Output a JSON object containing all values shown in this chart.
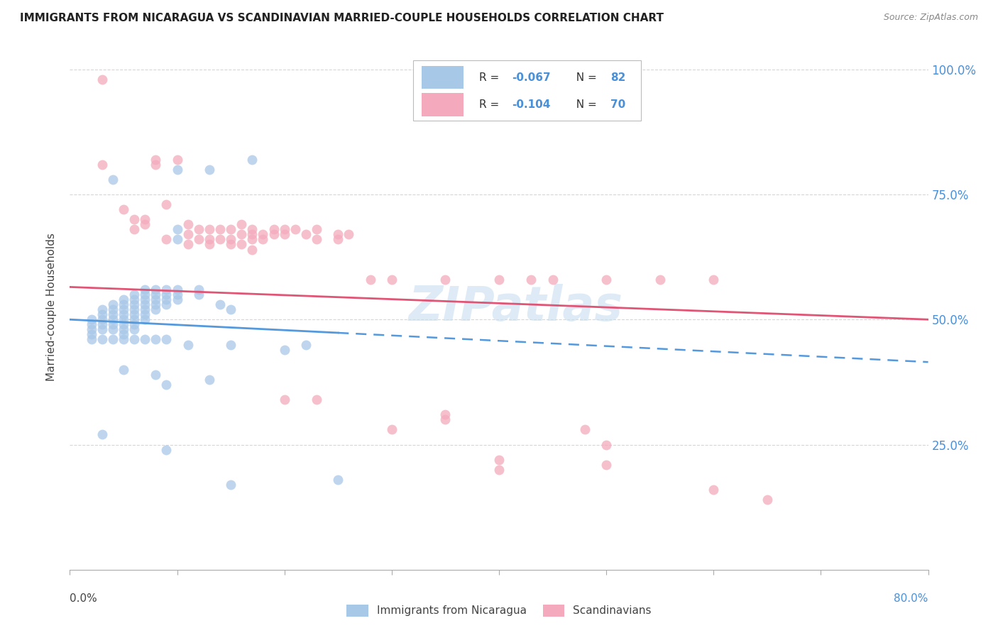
{
  "title": "IMMIGRANTS FROM NICARAGUA VS SCANDINAVIAN MARRIED-COUPLE HOUSEHOLDS CORRELATION CHART",
  "source": "Source: ZipAtlas.com",
  "ylabel": "Married-couple Households",
  "legend_label_blue": "Immigrants from Nicaragua",
  "legend_label_pink": "Scandinavians",
  "blue_color": "#a8c8e8",
  "pink_color": "#f4aabc",
  "blue_line_color": "#5599dd",
  "pink_line_color": "#e05575",
  "watermark": "ZIPatlas",
  "blue_points": [
    [
      0.002,
      0.5
    ],
    [
      0.002,
      0.49
    ],
    [
      0.002,
      0.48
    ],
    [
      0.002,
      0.47
    ],
    [
      0.003,
      0.52
    ],
    [
      0.003,
      0.51
    ],
    [
      0.003,
      0.5
    ],
    [
      0.003,
      0.49
    ],
    [
      0.003,
      0.48
    ],
    [
      0.004,
      0.53
    ],
    [
      0.004,
      0.52
    ],
    [
      0.004,
      0.51
    ],
    [
      0.004,
      0.5
    ],
    [
      0.004,
      0.49
    ],
    [
      0.004,
      0.48
    ],
    [
      0.005,
      0.54
    ],
    [
      0.005,
      0.53
    ],
    [
      0.005,
      0.52
    ],
    [
      0.005,
      0.51
    ],
    [
      0.005,
      0.5
    ],
    [
      0.005,
      0.49
    ],
    [
      0.005,
      0.48
    ],
    [
      0.005,
      0.47
    ],
    [
      0.006,
      0.55
    ],
    [
      0.006,
      0.54
    ],
    [
      0.006,
      0.53
    ],
    [
      0.006,
      0.52
    ],
    [
      0.006,
      0.51
    ],
    [
      0.006,
      0.5
    ],
    [
      0.006,
      0.49
    ],
    [
      0.006,
      0.48
    ],
    [
      0.007,
      0.56
    ],
    [
      0.007,
      0.55
    ],
    [
      0.007,
      0.54
    ],
    [
      0.007,
      0.53
    ],
    [
      0.007,
      0.52
    ],
    [
      0.007,
      0.51
    ],
    [
      0.007,
      0.5
    ],
    [
      0.008,
      0.56
    ],
    [
      0.008,
      0.55
    ],
    [
      0.008,
      0.54
    ],
    [
      0.008,
      0.53
    ],
    [
      0.008,
      0.52
    ],
    [
      0.009,
      0.56
    ],
    [
      0.009,
      0.55
    ],
    [
      0.009,
      0.54
    ],
    [
      0.009,
      0.53
    ],
    [
      0.01,
      0.56
    ],
    [
      0.01,
      0.55
    ],
    [
      0.01,
      0.54
    ],
    [
      0.012,
      0.56
    ],
    [
      0.012,
      0.55
    ],
    [
      0.014,
      0.53
    ],
    [
      0.015,
      0.52
    ],
    [
      0.004,
      0.78
    ],
    [
      0.005,
      0.4
    ],
    [
      0.008,
      0.39
    ],
    [
      0.009,
      0.37
    ],
    [
      0.01,
      0.68
    ],
    [
      0.01,
      0.66
    ],
    [
      0.011,
      0.45
    ],
    [
      0.013,
      0.38
    ],
    [
      0.015,
      0.45
    ],
    [
      0.02,
      0.44
    ],
    [
      0.022,
      0.45
    ],
    [
      0.025,
      0.18
    ],
    [
      0.003,
      0.27
    ],
    [
      0.009,
      0.24
    ],
    [
      0.015,
      0.17
    ],
    [
      0.01,
      0.8
    ],
    [
      0.013,
      0.8
    ],
    [
      0.017,
      0.82
    ],
    [
      0.002,
      0.46
    ],
    [
      0.003,
      0.46
    ],
    [
      0.004,
      0.46
    ],
    [
      0.005,
      0.46
    ],
    [
      0.006,
      0.46
    ],
    [
      0.007,
      0.46
    ],
    [
      0.008,
      0.46
    ],
    [
      0.009,
      0.46
    ]
  ],
  "pink_points": [
    [
      0.003,
      0.98
    ],
    [
      0.005,
      0.72
    ],
    [
      0.006,
      0.7
    ],
    [
      0.006,
      0.68
    ],
    [
      0.007,
      0.7
    ],
    [
      0.007,
      0.69
    ],
    [
      0.008,
      0.82
    ],
    [
      0.008,
      0.81
    ],
    [
      0.009,
      0.73
    ],
    [
      0.009,
      0.66
    ],
    [
      0.01,
      0.82
    ],
    [
      0.011,
      0.69
    ],
    [
      0.011,
      0.67
    ],
    [
      0.011,
      0.65
    ],
    [
      0.012,
      0.68
    ],
    [
      0.012,
      0.66
    ],
    [
      0.013,
      0.68
    ],
    [
      0.013,
      0.66
    ],
    [
      0.013,
      0.65
    ],
    [
      0.014,
      0.68
    ],
    [
      0.014,
      0.66
    ],
    [
      0.015,
      0.68
    ],
    [
      0.015,
      0.66
    ],
    [
      0.015,
      0.65
    ],
    [
      0.016,
      0.69
    ],
    [
      0.016,
      0.67
    ],
    [
      0.016,
      0.65
    ],
    [
      0.017,
      0.68
    ],
    [
      0.017,
      0.67
    ],
    [
      0.017,
      0.66
    ],
    [
      0.017,
      0.64
    ],
    [
      0.018,
      0.67
    ],
    [
      0.018,
      0.66
    ],
    [
      0.019,
      0.68
    ],
    [
      0.019,
      0.67
    ],
    [
      0.02,
      0.68
    ],
    [
      0.02,
      0.67
    ],
    [
      0.021,
      0.68
    ],
    [
      0.022,
      0.67
    ],
    [
      0.023,
      0.68
    ],
    [
      0.023,
      0.66
    ],
    [
      0.025,
      0.67
    ],
    [
      0.025,
      0.66
    ],
    [
      0.026,
      0.67
    ],
    [
      0.028,
      0.58
    ],
    [
      0.03,
      0.58
    ],
    [
      0.035,
      0.58
    ],
    [
      0.035,
      0.31
    ],
    [
      0.035,
      0.3
    ],
    [
      0.04,
      0.58
    ],
    [
      0.04,
      0.22
    ],
    [
      0.04,
      0.2
    ],
    [
      0.043,
      0.58
    ],
    [
      0.045,
      0.58
    ],
    [
      0.048,
      0.28
    ],
    [
      0.05,
      0.58
    ],
    [
      0.05,
      0.25
    ],
    [
      0.05,
      0.21
    ],
    [
      0.055,
      0.58
    ],
    [
      0.06,
      0.58
    ],
    [
      0.02,
      0.34
    ],
    [
      0.023,
      0.34
    ],
    [
      0.03,
      0.28
    ],
    [
      0.06,
      0.16
    ],
    [
      0.065,
      0.14
    ],
    [
      0.003,
      0.81
    ]
  ],
  "xmin": 0.0,
  "xmax": 0.08,
  "ymin": 0.0,
  "ymax": 1.05,
  "ytick_vals": [
    0.25,
    0.5,
    0.75,
    1.0
  ],
  "ytick_labels": [
    "25.0%",
    "50.0%",
    "75.0%",
    "100.0%"
  ]
}
